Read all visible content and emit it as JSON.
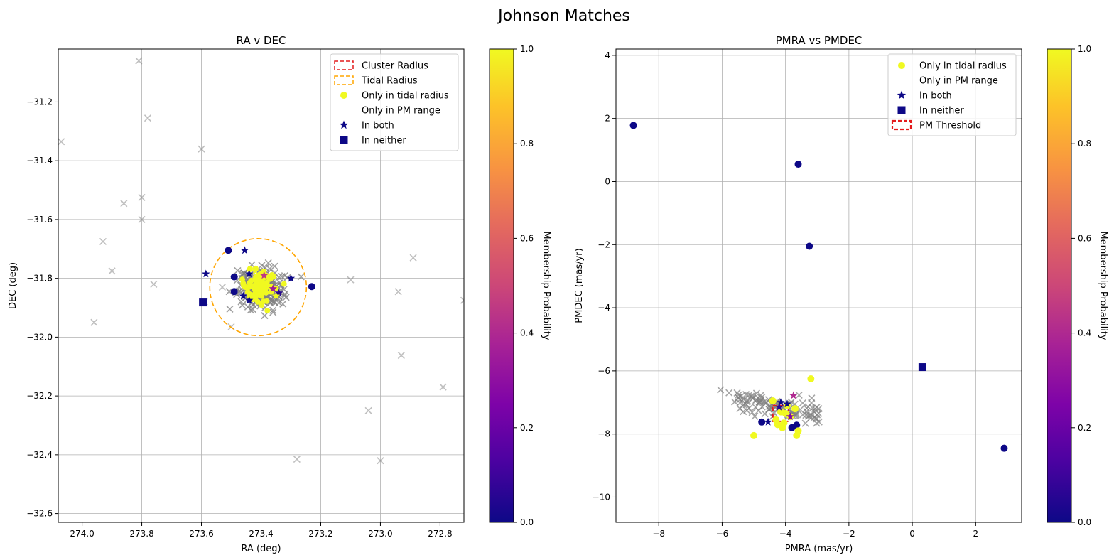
{
  "figure": {
    "suptitle": "Johnson Matches"
  },
  "chart_data": [
    {
      "type": "scatter",
      "title": "RA v DEC",
      "xlabel": "RA (deg)",
      "ylabel": "DEC (deg)",
      "xlim": [
        274.08,
        272.72
      ],
      "ylim": [
        -32.63,
        -31.02
      ],
      "xticks": [
        274.0,
        273.8,
        273.6,
        273.4,
        273.2,
        273.0,
        272.8
      ],
      "xtick_labels": [
        "274.0",
        "273.8",
        "273.6",
        "273.4",
        "273.2",
        "273.0",
        "272.8"
      ],
      "yticks": [
        -31.2,
        -31.4,
        -31.6,
        -31.8,
        -32.0,
        -32.2,
        -32.4,
        -32.6
      ],
      "ytick_labels": [
        "−31.2",
        "−31.4",
        "−31.6",
        "−31.8",
        "−32.0",
        "−32.2",
        "−32.4",
        "−32.6"
      ],
      "grid": true,
      "legend_position": "top-right",
      "legend": [
        {
          "label": "Cluster Radius",
          "marker": "dashed-rect",
          "color": "#e41a1c"
        },
        {
          "label": "Tidal Radius",
          "marker": "dashed-rect",
          "color": "#ffa500"
        },
        {
          "label": "Only in tidal radius",
          "marker": "circle",
          "color": "#f0f921"
        },
        {
          "label": "Only in PM range",
          "marker": "none",
          "color": "#ffffff"
        },
        {
          "label": "In both",
          "marker": "star",
          "color": "#0d0887"
        },
        {
          "label": "In neither",
          "marker": "square",
          "color": "#0d0887"
        }
      ],
      "tidal_circle": {
        "center": [
          273.41,
          -31.83
        ],
        "radius_ra": 0.162,
        "radius_dec": 0.165,
        "color": "#ffa500"
      },
      "background_crosses_faint": [
        [
          274.07,
          -31.335
        ],
        [
          273.81,
          -31.06
        ],
        [
          273.78,
          -31.255
        ],
        [
          273.6,
          -31.36
        ],
        [
          273.86,
          -31.545
        ],
        [
          273.8,
          -31.525
        ],
        [
          273.8,
          -31.6
        ],
        [
          273.93,
          -31.675
        ],
        [
          273.9,
          -31.775
        ],
        [
          273.76,
          -31.82
        ],
        [
          273.96,
          -31.95
        ],
        [
          273.1,
          -31.805
        ],
        [
          272.89,
          -31.73
        ],
        [
          272.94,
          -31.845
        ],
        [
          272.93,
          -32.062
        ],
        [
          272.72,
          -31.875
        ],
        [
          272.79,
          -32.17
        ],
        [
          273.04,
          -32.25
        ],
        [
          273.0,
          -32.42
        ],
        [
          273.28,
          -32.415
        ],
        [
          273.59,
          -31.88
        ],
        [
          273.53,
          -31.83
        ],
        [
          273.5,
          -31.965
        ]
      ],
      "cluster_cloud": {
        "center": [
          273.4,
          -31.835
        ],
        "spread_ra": 0.055,
        "spread_dec": 0.05,
        "count": 240,
        "color": "#808080"
      },
      "cluster_cloud_yellow": {
        "center": [
          273.41,
          -31.825
        ],
        "spread_ra": 0.03,
        "spread_dec": 0.025,
        "count": 70,
        "color": "#f0f921"
      },
      "members_circle": [
        {
          "x": 273.51,
          "y": -31.705,
          "p": 0.0
        },
        {
          "x": 273.49,
          "y": -31.795,
          "p": 0.0
        },
        {
          "x": 273.49,
          "y": -31.845,
          "p": 0.0
        },
        {
          "x": 273.23,
          "y": -31.828,
          "p": 0.0
        },
        {
          "x": 273.4,
          "y": -31.8,
          "p": 1.0
        },
        {
          "x": 273.43,
          "y": -31.86,
          "p": 1.0
        },
        {
          "x": 273.37,
          "y": -31.8,
          "p": 1.0
        }
      ],
      "members_star": [
        {
          "x": 273.585,
          "y": -31.785,
          "p": 0.0
        },
        {
          "x": 273.455,
          "y": -31.705,
          "p": 0.0
        },
        {
          "x": 273.44,
          "y": -31.785,
          "p": 0.0
        },
        {
          "x": 273.46,
          "y": -31.86,
          "p": 0.0
        },
        {
          "x": 273.44,
          "y": -31.875,
          "p": 0.0
        },
        {
          "x": 273.3,
          "y": -31.8,
          "p": 0.0
        },
        {
          "x": 273.34,
          "y": -31.85,
          "p": 0.05
        },
        {
          "x": 273.36,
          "y": -31.835,
          "p": 0.35
        },
        {
          "x": 273.39,
          "y": -31.79,
          "p": 0.45
        },
        {
          "x": 273.42,
          "y": -31.775,
          "p": 1.0
        },
        {
          "x": 273.4,
          "y": -31.888,
          "p": 1.0
        },
        {
          "x": 273.35,
          "y": -31.86,
          "p": 1.0
        }
      ],
      "members_square": [
        {
          "x": 273.595,
          "y": -31.882,
          "p": 0.0
        }
      ]
    },
    {
      "type": "scatter",
      "title": "PMRA vs PMDEC",
      "xlabel": "PMRA (mas/yr)",
      "ylabel": "PMDEC (mas/yr)",
      "xlim": [
        -9.35,
        3.45
      ],
      "ylim": [
        -10.8,
        4.2
      ],
      "xticks": [
        -8,
        -6,
        -4,
        -2,
        0,
        2
      ],
      "xtick_labels": [
        "−8",
        "−6",
        "−4",
        "−2",
        "0",
        "2"
      ],
      "yticks": [
        4,
        2,
        0,
        -2,
        -4,
        -6,
        -8,
        -10
      ],
      "ytick_labels": [
        "4",
        "2",
        "0",
        "−2",
        "−4",
        "−6",
        "−8",
        "−10"
      ],
      "grid": true,
      "legend_position": "top-right",
      "legend": [
        {
          "label": "Only in tidal radius",
          "marker": "circle",
          "color": "#f0f921"
        },
        {
          "label": "Only in PM range",
          "marker": "none",
          "color": "#ffffff"
        },
        {
          "label": "In both",
          "marker": "star",
          "color": "#0d0887"
        },
        {
          "label": "In neither",
          "marker": "square",
          "color": "#0d0887"
        },
        {
          "label": "PM Threshold",
          "marker": "dashed-rect-thick",
          "color": "#e41a1c"
        }
      ],
      "pm_threshold_box": {
        "x0": -4.4,
        "x1": -3.9,
        "y0": -7.6,
        "y1": -7.1,
        "color": "#e41a1c"
      },
      "cross_band": {
        "x_start": -5.6,
        "x_end": -3.0,
        "y_start": -6.85,
        "y_end": -7.4,
        "width": 0.35,
        "count": 110,
        "color": "#808080"
      },
      "background_crosses": [
        [
          -6.05,
          -6.6
        ],
        [
          -5.4,
          -6.8
        ],
        [
          -2.95,
          -7.2
        ]
      ],
      "members_circle": [
        {
          "x": -8.8,
          "y": 1.78,
          "p": 0.0
        },
        {
          "x": -3.6,
          "y": 0.55,
          "p": 0.0
        },
        {
          "x": -3.25,
          "y": -2.05,
          "p": 0.0
        },
        {
          "x": 2.9,
          "y": -8.45,
          "p": 0.0
        },
        {
          "x": -4.75,
          "y": -7.62,
          "p": 0.0
        },
        {
          "x": -3.8,
          "y": -7.8,
          "p": 0.0
        },
        {
          "x": -3.65,
          "y": -7.72,
          "p": 0.0
        },
        {
          "x": -3.2,
          "y": -6.25,
          "p": 1.0
        },
        {
          "x": -5.0,
          "y": -8.05,
          "p": 1.0
        },
        {
          "x": -3.65,
          "y": -8.05,
          "p": 1.0
        },
        {
          "x": -3.6,
          "y": -7.9,
          "p": 1.0
        },
        {
          "x": -4.1,
          "y": -7.8,
          "p": 1.0
        },
        {
          "x": -4.3,
          "y": -7.55,
          "p": 1.0
        },
        {
          "x": -4.15,
          "y": -7.3,
          "p": 1.0
        },
        {
          "x": -3.95,
          "y": -7.1,
          "p": 1.0
        },
        {
          "x": -4.4,
          "y": -6.95,
          "p": 1.0
        },
        {
          "x": -4.05,
          "y": -7.65,
          "p": 1.0
        },
        {
          "x": -3.85,
          "y": -7.45,
          "p": 1.0
        },
        {
          "x": -4.25,
          "y": -7.7,
          "p": 1.0
        },
        {
          "x": -4.0,
          "y": -7.35,
          "p": 1.0
        },
        {
          "x": -3.7,
          "y": -7.2,
          "p": 1.0
        }
      ],
      "members_star": [
        {
          "x": -4.55,
          "y": -7.62,
          "p": 0.0
        },
        {
          "x": -4.15,
          "y": -7.0,
          "p": 0.0
        },
        {
          "x": -3.95,
          "y": -7.05,
          "p": 0.0
        },
        {
          "x": -3.75,
          "y": -6.78,
          "p": 0.4
        },
        {
          "x": -3.85,
          "y": -7.45,
          "p": 0.25
        },
        {
          "x": -4.2,
          "y": -7.15,
          "p": 0.05
        }
      ],
      "members_square": [
        {
          "x": 0.32,
          "y": -5.88,
          "p": 0.0
        }
      ]
    }
  ],
  "colorbar": {
    "label": "Membership Probability",
    "range": [
      0.0,
      1.0
    ],
    "ticks": [
      0.0,
      0.2,
      0.4,
      0.6,
      0.8,
      1.0
    ],
    "tick_labels": [
      "0.0",
      "0.2",
      "0.4",
      "0.6",
      "0.8",
      "1.0"
    ],
    "colormap": "plasma"
  }
}
